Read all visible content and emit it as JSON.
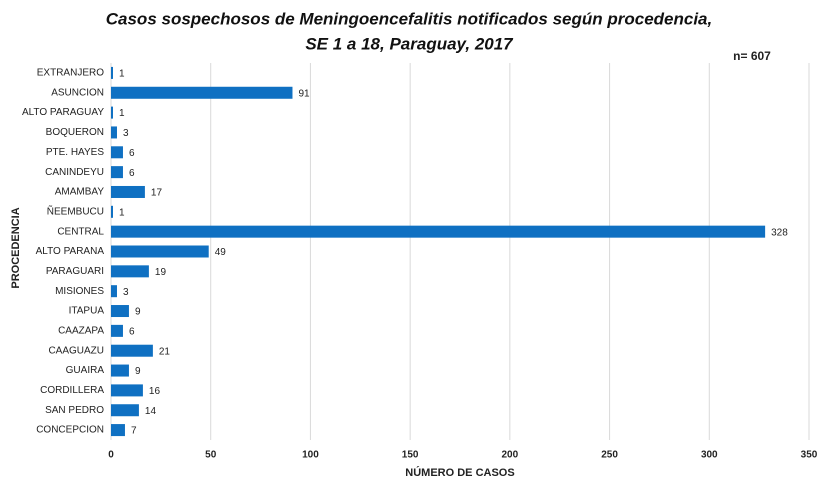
{
  "chart_data": {
    "type": "bar",
    "orientation": "horizontal",
    "title": [
      "Casos sospechosos de Meningoencefalitis notificados según procedencia,",
      "SE 1 a 18, Paraguay, 2017"
    ],
    "annotation": "n= 607",
    "xlabel": "NÚMERO DE CASOS",
    "ylabel": "PROCEDENCIA",
    "categories": [
      "EXTRANJERO",
      "ASUNCION",
      "ALTO PARAGUAY",
      "BOQUERON",
      "PTE. HAYES",
      "CANINDEYU",
      "AMAMBAY",
      "ÑEEMBUCU",
      "CENTRAL",
      "ALTO PARANA",
      "PARAGUARI",
      "MISIONES",
      "ITAPUA",
      "CAAZAPA",
      "CAAGUAZU",
      "GUAIRA",
      "CORDILLERA",
      "SAN PEDRO",
      "CONCEPCION"
    ],
    "values": [
      1,
      91,
      1,
      3,
      6,
      6,
      17,
      1,
      328,
      49,
      19,
      3,
      9,
      6,
      21,
      9,
      16,
      14,
      7
    ],
    "color": "#0f70c2",
    "xlim": [
      0,
      350
    ],
    "xticks": [
      0,
      50,
      100,
      150,
      200,
      250,
      300,
      350
    ],
    "grid": true
  }
}
